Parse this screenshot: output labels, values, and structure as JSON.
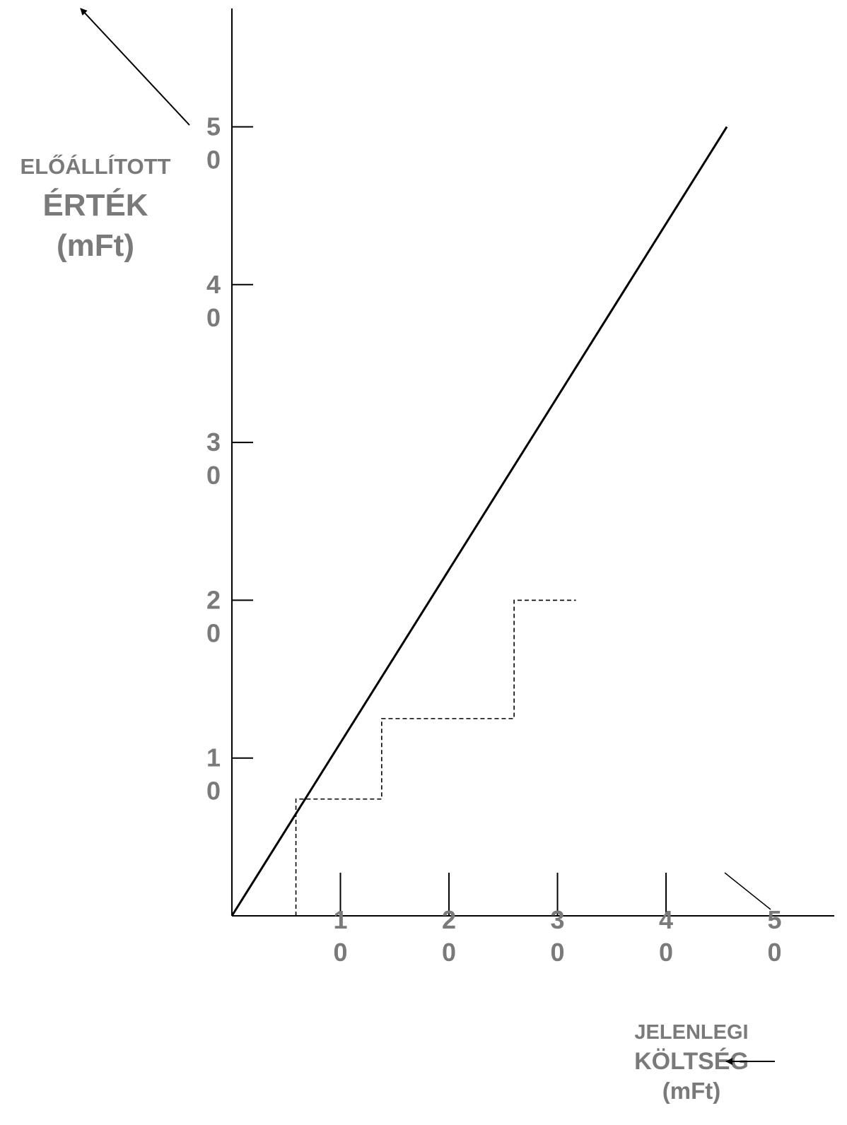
{
  "chart_data": {
    "type": "line",
    "y_axis_title": {
      "line1": "ELŐÁLLÍTOTT",
      "line2": "ÉRTÉK",
      "line3": "(mFt)"
    },
    "x_axis_title": {
      "line1": "JELENLEGI",
      "line2": "KÖLTSÉG",
      "line3": "(mFt)"
    },
    "x_ticks": [
      {
        "value": 10,
        "d1": "1",
        "d2": "0"
      },
      {
        "value": 20,
        "d1": "2",
        "d2": "0"
      },
      {
        "value": 30,
        "d1": "3",
        "d2": "0"
      },
      {
        "value": 40,
        "d1": "4",
        "d2": "0"
      },
      {
        "value": 50,
        "d1": "5",
        "d2": "0"
      }
    ],
    "y_ticks": [
      {
        "value": 10,
        "d1": "1",
        "d2": "0"
      },
      {
        "value": 20,
        "d1": "2",
        "d2": "0"
      },
      {
        "value": 30,
        "d1": "3",
        "d2": "0"
      },
      {
        "value": 40,
        "d1": "4",
        "d2": "0"
      },
      {
        "value": 50,
        "d1": "5",
        "d2": "0"
      }
    ],
    "xlim": [
      0,
      55.5
    ],
    "ylim": [
      0,
      57.5
    ],
    "series": [
      {
        "style": "solid",
        "x": [
          0,
          45.6
        ],
        "y": [
          0,
          50
        ]
      },
      {
        "style": "dashed",
        "x": [
          5.9,
          5.9,
          13.8,
          13.8,
          26.0,
          26.0,
          31.7
        ],
        "y": [
          0,
          7.4,
          7.4,
          12.5,
          12.5,
          20.0,
          20.0
        ]
      }
    ],
    "grid": false
  }
}
